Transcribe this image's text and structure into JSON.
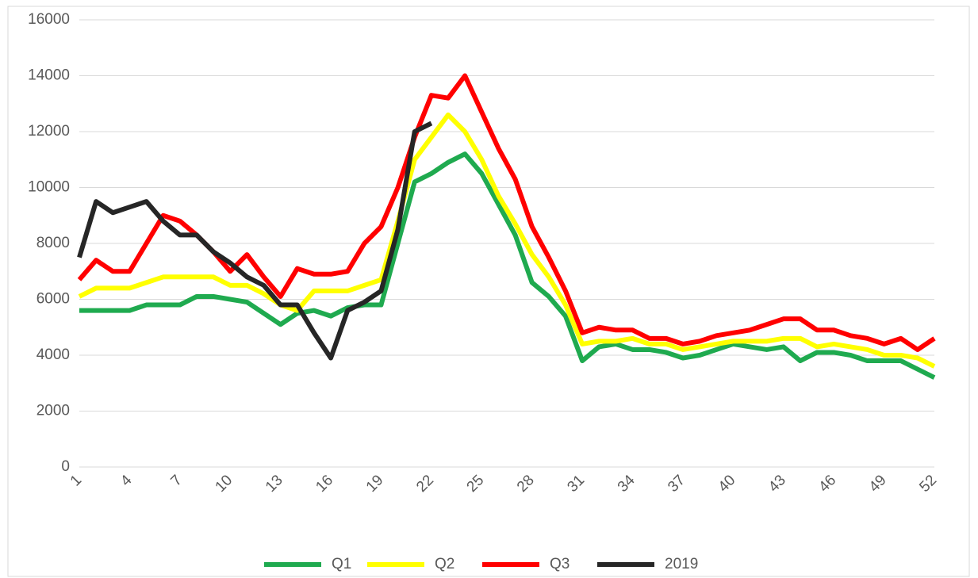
{
  "chart_data": {
    "type": "line",
    "categories": [
      1,
      null,
      null,
      4,
      null,
      null,
      7,
      null,
      null,
      10,
      null,
      null,
      13,
      null,
      null,
      16,
      null,
      null,
      19,
      null,
      null,
      22,
      null,
      null,
      25,
      null,
      null,
      28,
      null,
      null,
      31,
      null,
      null,
      34,
      null,
      null,
      37,
      null,
      null,
      40,
      null,
      null,
      43,
      null,
      null,
      46,
      null,
      null,
      49,
      null,
      null,
      52
    ],
    "ylim": [
      0,
      16000
    ],
    "yticks": [
      0,
      2000,
      4000,
      6000,
      8000,
      10000,
      12000,
      14000,
      16000
    ],
    "grid": true,
    "legend": "bottom",
    "series": [
      {
        "name": "Q1",
        "color": "#1faa4f",
        "values": [
          5600,
          5600,
          5600,
          5600,
          5800,
          5800,
          5800,
          6100,
          6100,
          6000,
          5900,
          5500,
          5100,
          5500,
          5600,
          5400,
          5700,
          5800,
          5800,
          8000,
          10200,
          10500,
          10900,
          11200,
          10500,
          9400,
          8300,
          6600,
          6100,
          5400,
          3800,
          4300,
          4400,
          4200,
          4200,
          4100,
          3900,
          4000,
          4200,
          4400,
          4300,
          4200,
          4300,
          3800,
          4100,
          4100,
          4000,
          3800,
          3800,
          3800,
          3500,
          3200
        ]
      },
      {
        "name": "Q2",
        "color": "#ffff00",
        "values": [
          6100,
          6400,
          6400,
          6400,
          6600,
          6800,
          6800,
          6800,
          6800,
          6500,
          6500,
          6200,
          5800,
          5600,
          6300,
          6300,
          6300,
          6500,
          6700,
          8800,
          11000,
          11800,
          12600,
          12000,
          11000,
          9700,
          8700,
          7600,
          6800,
          5800,
          4400,
          4500,
          4500,
          4600,
          4400,
          4400,
          4200,
          4300,
          4400,
          4500,
          4500,
          4500,
          4600,
          4600,
          4300,
          4400,
          4300,
          4200,
          4000,
          4000,
          3900,
          3600
        ]
      },
      {
        "name": "Q3",
        "color": "#ff0000",
        "values": [
          6700,
          7400,
          7000,
          7000,
          8000,
          9000,
          8800,
          8300,
          7700,
          7000,
          7600,
          6800,
          6100,
          7100,
          6900,
          6900,
          7000,
          8000,
          8600,
          10000,
          11800,
          13300,
          13200,
          14000,
          12700,
          11400,
          10300,
          8600,
          7500,
          6300,
          4800,
          5000,
          4900,
          4900,
          4600,
          4600,
          4400,
          4500,
          4700,
          4800,
          4900,
          5100,
          5300,
          5300,
          4900,
          4900,
          4700,
          4600,
          4400,
          4600,
          4200,
          4600
        ]
      },
      {
        "name": "2019",
        "color": "#262626",
        "values": [
          7500,
          9500,
          9100,
          9300,
          9500,
          8800,
          8300,
          8300,
          7700,
          7300,
          6800,
          6500,
          5800,
          5800,
          4800,
          3900,
          5600,
          5900,
          6300,
          8500,
          12000,
          12300,
          null,
          null,
          null,
          null,
          null,
          null,
          null,
          null,
          null,
          null,
          null,
          null,
          null,
          null,
          null,
          null,
          null,
          null,
          null,
          null,
          null,
          null,
          null,
          null,
          null,
          null,
          null,
          null,
          null,
          null
        ]
      }
    ]
  }
}
